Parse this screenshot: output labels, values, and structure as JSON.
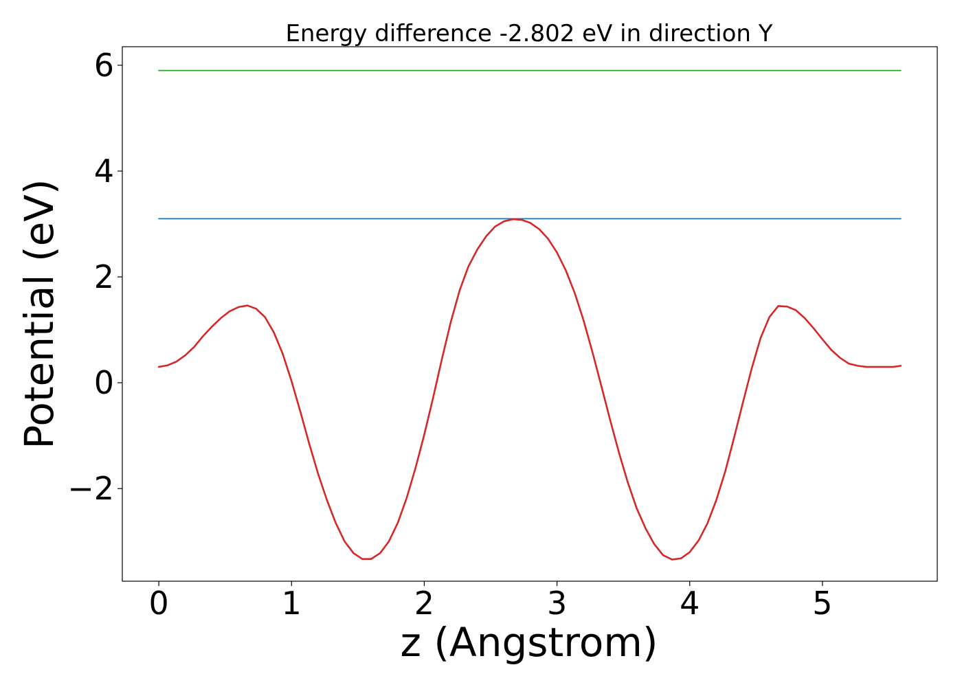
{
  "chart_data": {
    "type": "line",
    "title": "Energy difference -2.802 eV in direction Y",
    "xlabel": "z (Angstrom)",
    "ylabel": "Potential (eV)",
    "xlim": [
      -0.275,
      5.865
    ],
    "ylim": [
      -3.75,
      6.35
    ],
    "xticks": [
      0,
      1,
      2,
      3,
      4,
      5
    ],
    "xtick_labels": [
      "0",
      "1",
      "2",
      "3",
      "4",
      "5"
    ],
    "yticks": [
      -2,
      0,
      2,
      4,
      6
    ],
    "ytick_labels": [
      "−2",
      "0",
      "2",
      "4",
      "6"
    ],
    "grid": false,
    "series": [
      {
        "color": "#2ca02c",
        "x": [
          0,
          5.59
        ],
        "y": [
          5.9,
          5.9
        ]
      },
      {
        "color": "#1f77b4",
        "x": [
          0,
          5.59
        ],
        "y": [
          3.1,
          3.1
        ]
      },
      {
        "color": "#d62728",
        "x": [
          0,
          0.067,
          0.133,
          0.2,
          0.267,
          0.333,
          0.4,
          0.467,
          0.533,
          0.6,
          0.667,
          0.733,
          0.8,
          0.867,
          0.933,
          1.0,
          1.067,
          1.133,
          1.2,
          1.267,
          1.333,
          1.4,
          1.467,
          1.533,
          1.6,
          1.667,
          1.733,
          1.8,
          1.867,
          1.933,
          2.0,
          2.067,
          2.133,
          2.2,
          2.267,
          2.333,
          2.4,
          2.467,
          2.533,
          2.6,
          2.667,
          2.733,
          2.8,
          2.867,
          2.933,
          3.0,
          3.067,
          3.133,
          3.2,
          3.267,
          3.333,
          3.4,
          3.467,
          3.533,
          3.6,
          3.667,
          3.733,
          3.8,
          3.867,
          3.933,
          4.0,
          4.067,
          4.133,
          4.2,
          4.267,
          4.333,
          4.4,
          4.467,
          4.533,
          4.6,
          4.667,
          4.733,
          4.8,
          4.867,
          4.933,
          5.0,
          5.067,
          5.133,
          5.2,
          5.267,
          5.333,
          5.4,
          5.467,
          5.533,
          5.59
        ],
        "y": [
          0.3,
          0.33,
          0.4,
          0.52,
          0.68,
          0.88,
          1.06,
          1.22,
          1.35,
          1.43,
          1.46,
          1.4,
          1.24,
          0.95,
          0.55,
          0.03,
          -0.55,
          -1.15,
          -1.72,
          -2.22,
          -2.65,
          -3.0,
          -3.22,
          -3.33,
          -3.33,
          -3.22,
          -3.0,
          -2.65,
          -2.18,
          -1.62,
          -0.98,
          -0.28,
          0.45,
          1.15,
          1.75,
          2.2,
          2.52,
          2.77,
          2.95,
          3.05,
          3.09,
          3.08,
          3.02,
          2.9,
          2.72,
          2.46,
          2.12,
          1.7,
          1.18,
          0.58,
          -0.05,
          -0.7,
          -1.32,
          -1.88,
          -2.37,
          -2.75,
          -3.05,
          -3.26,
          -3.34,
          -3.32,
          -3.2,
          -2.98,
          -2.66,
          -2.22,
          -1.68,
          -1.05,
          -0.38,
          0.27,
          0.84,
          1.24,
          1.45,
          1.44,
          1.37,
          1.22,
          1.03,
          0.82,
          0.62,
          0.47,
          0.36,
          0.32,
          0.3,
          0.3,
          0.3,
          0.3,
          0.32
        ]
      }
    ]
  }
}
